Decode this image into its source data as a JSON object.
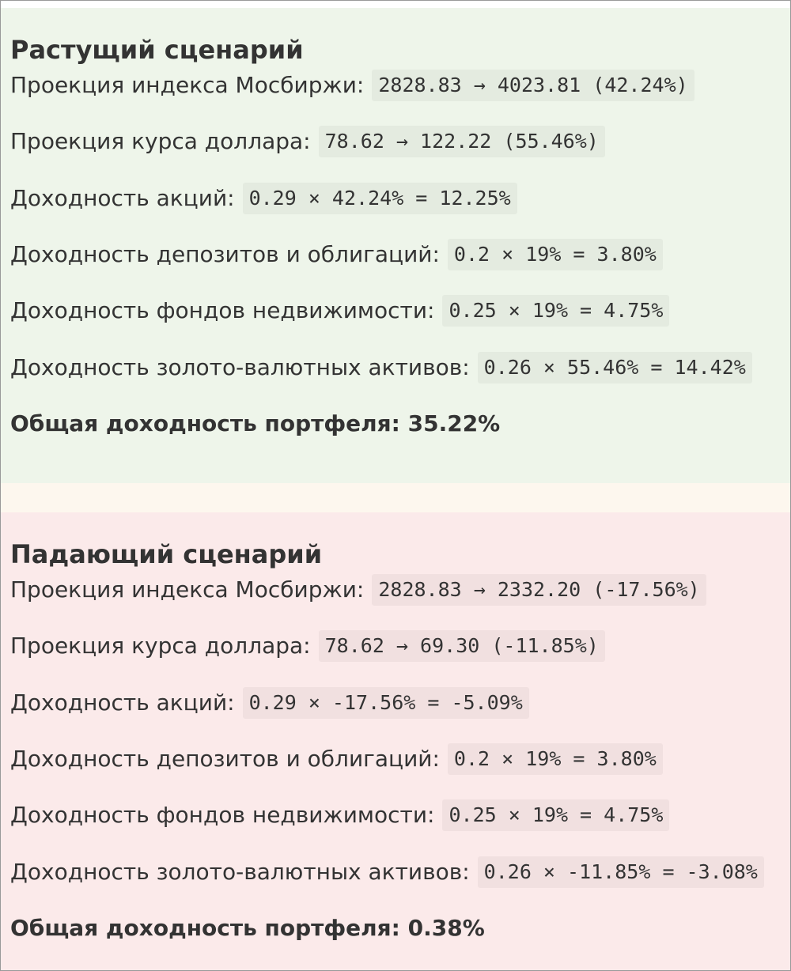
{
  "sections": [
    {
      "title": "Растущий сценарий",
      "rows": [
        {
          "label": "Проекция индекса Мосбиржи:",
          "code": "2828.83 → 4023.81 (42.24%)"
        },
        {
          "label": "Проекция курса доллара:",
          "code": "78.62 → 122.22 (55.46%)"
        },
        {
          "label": "Доходность акций:",
          "code": "0.29 × 42.24% = 12.25%"
        },
        {
          "label": "Доходность депозитов и облигаций:",
          "code": "0.2 × 19% = 3.80%"
        },
        {
          "label": "Доходность фондов недвижимости:",
          "code": "0.25 × 19% = 4.75%"
        },
        {
          "label": "Доходность золото-валютных активов:",
          "code": "0.26 × 55.46% = 14.42%"
        }
      ],
      "total": "Общая доходность портфеля: 35.22%"
    },
    {
      "title": "Падающий сценарий",
      "rows": [
        {
          "label": "Проекция индекса Мосбиржи:",
          "code": "2828.83 → 2332.20 (-17.56%)"
        },
        {
          "label": "Проекция курса доллара:",
          "code": "78.62 → 69.30 (-11.85%)"
        },
        {
          "label": "Доходность акций:",
          "code": "0.29 × -17.56% = -5.09%"
        },
        {
          "label": "Доходность депозитов и облигаций:",
          "code": "0.2 × 19% = 3.80%"
        },
        {
          "label": "Доходность фондов недвижимости:",
          "code": "0.25 × 19% = 4.75%"
        },
        {
          "label": "Доходность золото-валютных активов:",
          "code": "0.26 × -11.85% = -3.08%"
        }
      ],
      "total": "Общая доходность портфеля: 0.38%"
    }
  ]
}
